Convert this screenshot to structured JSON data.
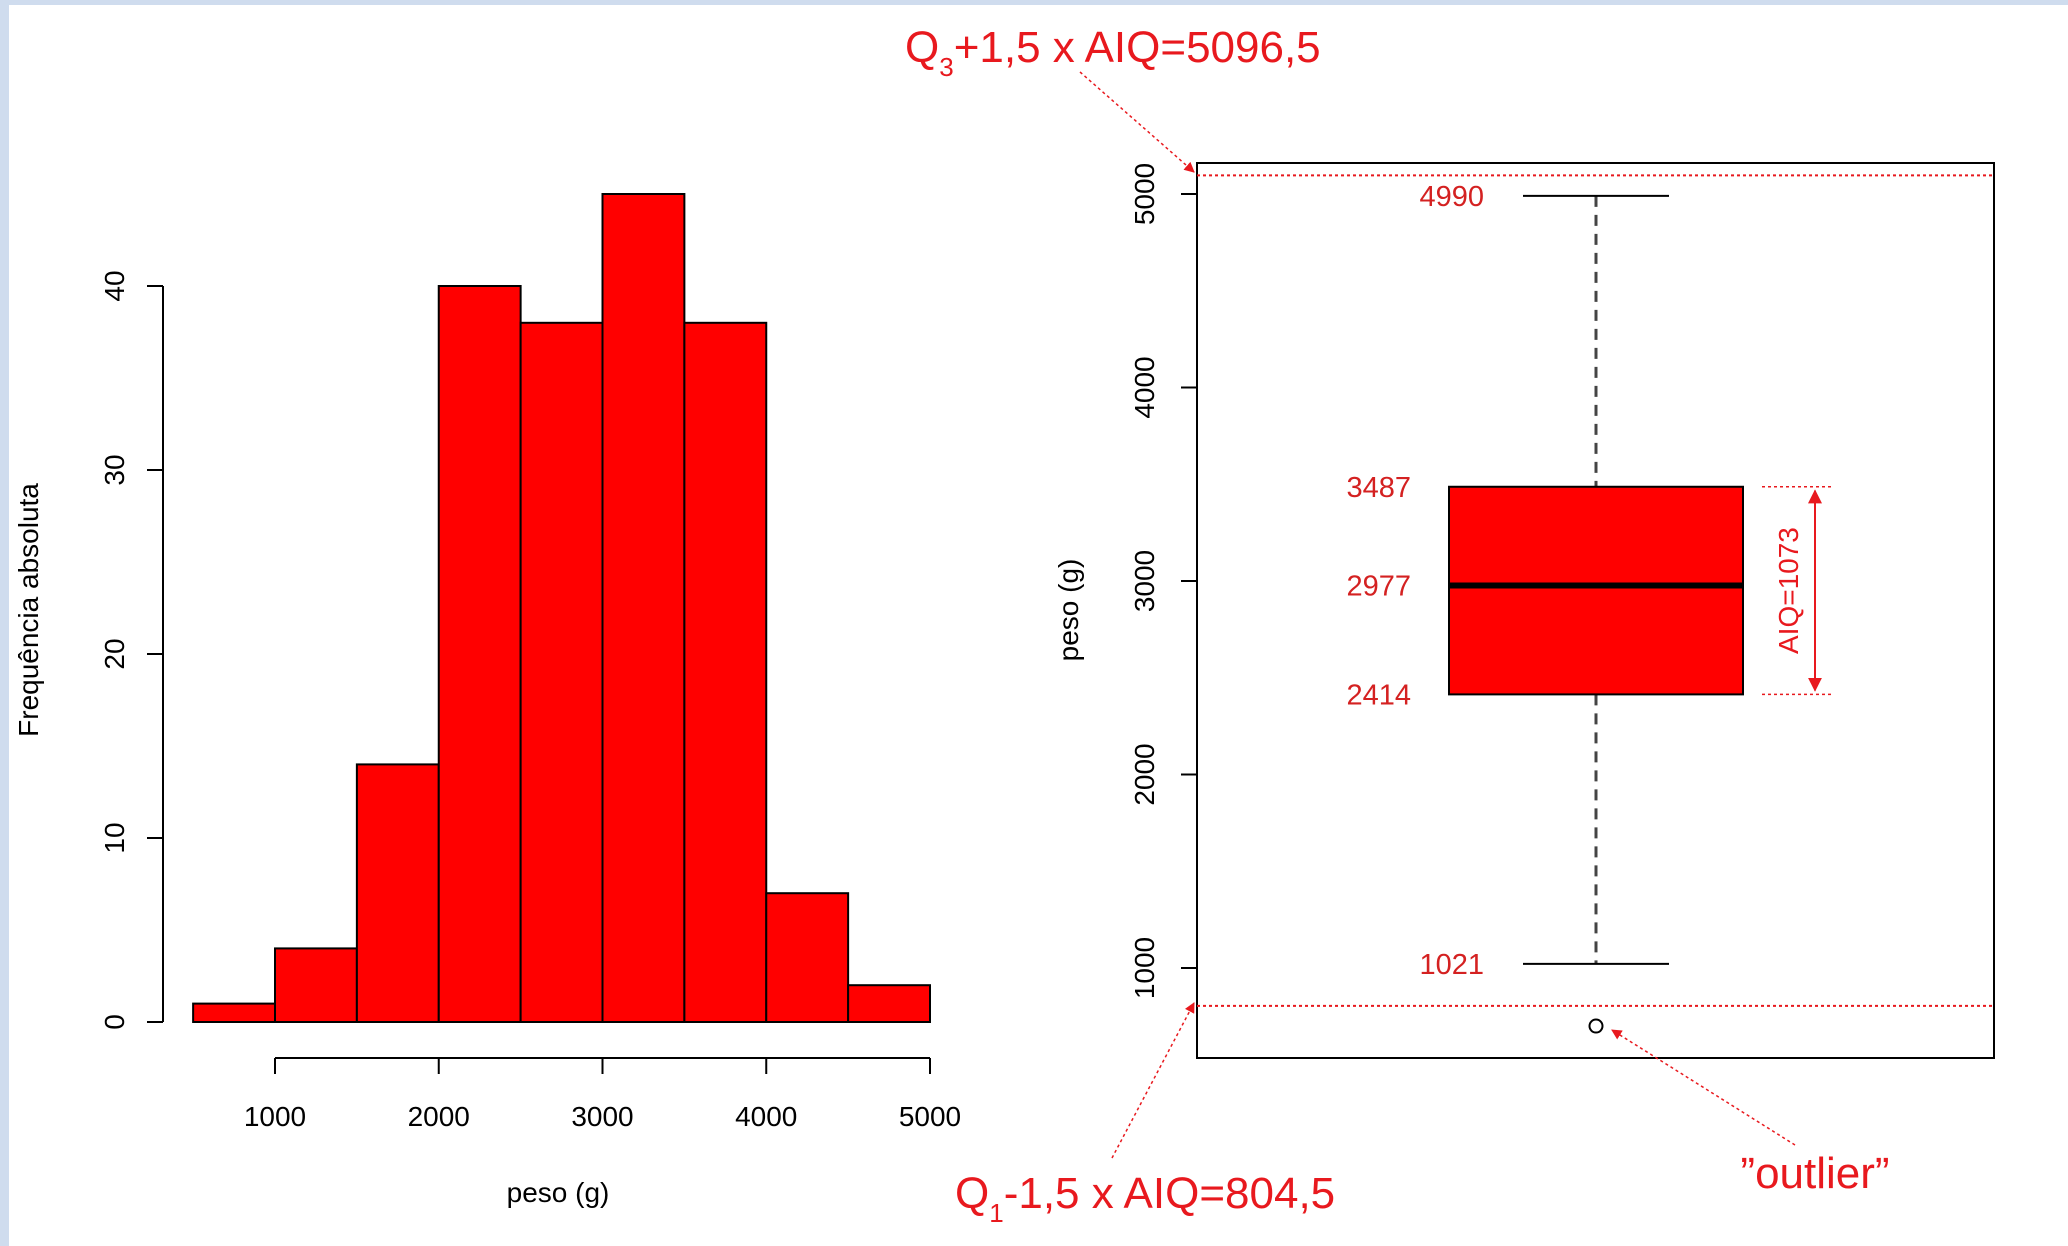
{
  "chart_data": [
    {
      "type": "bar",
      "subtype": "histogram",
      "bins": [
        {
          "x0": 500,
          "x1": 1000,
          "value": 1
        },
        {
          "x0": 1000,
          "x1": 1500,
          "value": 4
        },
        {
          "x0": 1500,
          "x1": 2000,
          "value": 14
        },
        {
          "x0": 2000,
          "x1": 2500,
          "value": 40
        },
        {
          "x0": 2500,
          "x1": 3000,
          "value": 38
        },
        {
          "x0": 3000,
          "x1": 3500,
          "value": 45
        },
        {
          "x0": 3500,
          "x1": 4000,
          "value": 38
        },
        {
          "x0": 4000,
          "x1": 4500,
          "value": 7
        },
        {
          "x0": 4500,
          "x1": 5000,
          "value": 2
        }
      ],
      "xlabel": "peso (g)",
      "ylabel": "Frequência absoluta",
      "xlim": [
        500,
        5000
      ],
      "ylim": [
        0,
        45
      ],
      "xticks": [
        "1000",
        "2000",
        "3000",
        "4000",
        "5000"
      ],
      "yticks": [
        "0",
        "10",
        "20",
        "30",
        "40"
      ],
      "bar_color": "#ff0000",
      "grid": false
    },
    {
      "type": "box",
      "ylabel": "peso (g)",
      "ylim": [
        540,
        5210
      ],
      "yticks": [
        "1000",
        "2000",
        "3000",
        "4000",
        "5000"
      ],
      "stats": {
        "lower_whisker": 1021,
        "q1": 2414,
        "median": 2977,
        "q3": 3487,
        "upper_whisker": 4990
      },
      "stat_labels": {
        "upper_whisker": "4990",
        "q3": "3487",
        "median": "2977",
        "q1": "2414",
        "lower_whisker": "1021"
      },
      "outliers": [
        700
      ],
      "fences": {
        "upper": 5096.5,
        "lower": 804.5
      },
      "annotations": {
        "upper_fence": {
          "main": "Q",
          "sub": "3",
          "rest": "+1,5 x AIQ=5096,5"
        },
        "lower_fence": {
          "main": "Q",
          "sub": "1",
          "rest": "-1,5 x AIQ=804,5"
        },
        "outlier": "”outlier”",
        "iqr": "AIQ=1073"
      },
      "box_color": "#ff0000",
      "annotation_color": "#e8191e",
      "grid": false
    }
  ]
}
